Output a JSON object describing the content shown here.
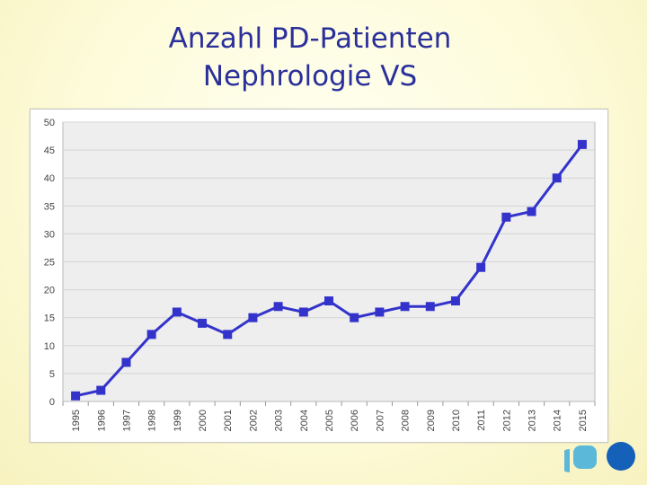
{
  "slide": {
    "title_line1": "Anzahl PD-Patienten",
    "title_line2": "Nephrologie VS"
  },
  "chart_data": {
    "type": "line",
    "title": "",
    "xlabel": "",
    "ylabel": "",
    "categories": [
      "1995",
      "1996",
      "1997",
      "1998",
      "1999",
      "2000",
      "2001",
      "2002",
      "2003",
      "2004",
      "2005",
      "2006",
      "2007",
      "2008",
      "2009",
      "2010",
      "2011",
      "2012",
      "2013",
      "2014",
      "2015"
    ],
    "series": [
      {
        "values": [
          1,
          2,
          7,
          12,
          16,
          14,
          12,
          15,
          17,
          16,
          18,
          15,
          16,
          17,
          17,
          18,
          24,
          33,
          34,
          40,
          46
        ]
      }
    ],
    "ylim": [
      0,
      50
    ],
    "yticks": [
      0,
      5,
      10,
      15,
      20,
      25,
      30,
      35,
      40,
      45,
      50
    ],
    "grid": true,
    "legend": "none",
    "line_color": "#3333cc",
    "marker": "square"
  },
  "colors": {
    "title": "#2a2f9a",
    "grid": "#d4d4d4",
    "plot_bg": "#eeeeee",
    "logo_light": "#5bb8d8",
    "logo_dark": "#1560b8"
  },
  "icons": {
    "logo": "institution-logo-icon"
  }
}
